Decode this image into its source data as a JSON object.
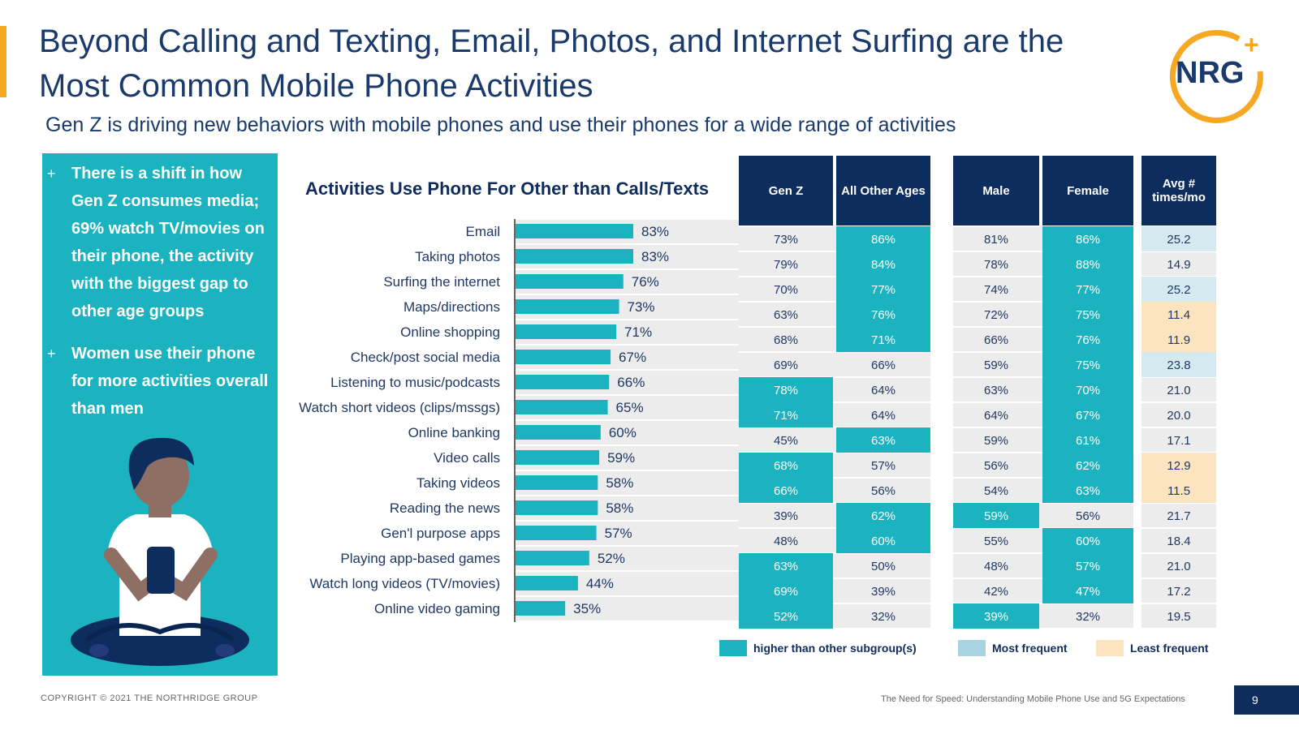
{
  "slide": {
    "title": "Beyond Calling and Texting, Email, Photos, and Internet Surfing are the Most Common Mobile Phone Activities",
    "subtitle": "Gen Z is driving new behaviors with mobile phones and use their phones for a wide range of activities",
    "logo_text": "NRG",
    "logo_plus": "+",
    "copyright": "COPYRIGHT © 2021 THE NORTHRIDGE GROUP",
    "report_title": "The Need for Speed: Understanding Mobile Phone Use and 5G Expectations",
    "page_number": "9"
  },
  "sidebar": {
    "bullets": [
      {
        "marker": "+",
        "text": "There is a shift in how Gen Z consumes media; 69% watch TV/movies on their phone, the activity with the biggest gap to other age groups"
      },
      {
        "marker": "+",
        "text": "Women use their phone for more activities overall than men"
      }
    ]
  },
  "colors": {
    "teal": "#1ab3bf",
    "navy": "#0d2d5e",
    "light_blue": "#d5e9f0",
    "light_orange": "#fde4c0",
    "orange": "#f7a823",
    "row_gray": "#ececec"
  },
  "chart_data": {
    "type": "bar",
    "orientation": "horizontal",
    "title": "Activities Use Phone For Other than Calls/Texts",
    "categories": [
      "Email",
      "Taking photos",
      "Surfing the internet",
      "Maps/directions",
      "Online shopping",
      "Check/post social media",
      "Listening to music/podcasts",
      "Watch short videos (clips/mssgs)",
      "Online banking",
      "Video calls",
      "Taking videos",
      "Reading the news",
      "Gen'l purpose apps",
      "Playing app-based games",
      "Watch long videos (TV/movies)",
      "Online video gaming"
    ],
    "values": [
      83,
      83,
      76,
      73,
      71,
      67,
      66,
      65,
      60,
      59,
      58,
      58,
      57,
      52,
      44,
      35
    ],
    "value_labels": [
      "83%",
      "83%",
      "76%",
      "73%",
      "71%",
      "67%",
      "66%",
      "65%",
      "60%",
      "59%",
      "58%",
      "58%",
      "57%",
      "52%",
      "44%",
      "35%"
    ],
    "xlim": [
      0,
      100
    ],
    "unit": "%"
  },
  "table": {
    "columns": [
      {
        "key": "genz",
        "label": "Gen Z"
      },
      {
        "key": "other",
        "label": "All Other Ages"
      },
      {
        "key": "male",
        "label": "Male"
      },
      {
        "key": "female",
        "label": "Female"
      },
      {
        "key": "avg",
        "label": "Avg # times/mo"
      }
    ],
    "rows": [
      {
        "genz": "73%",
        "other": "86%",
        "male": "81%",
        "female": "86%",
        "avg": "25.2",
        "hl": [
          "other",
          "female"
        ],
        "avg_style": "most"
      },
      {
        "genz": "79%",
        "other": "84%",
        "male": "78%",
        "female": "88%",
        "avg": "14.9",
        "hl": [
          "other",
          "female"
        ],
        "avg_style": ""
      },
      {
        "genz": "70%",
        "other": "77%",
        "male": "74%",
        "female": "77%",
        "avg": "25.2",
        "hl": [
          "other",
          "female"
        ],
        "avg_style": "most"
      },
      {
        "genz": "63%",
        "other": "76%",
        "male": "72%",
        "female": "75%",
        "avg": "11.4",
        "hl": [
          "other",
          "female"
        ],
        "avg_style": "least"
      },
      {
        "genz": "68%",
        "other": "71%",
        "male": "66%",
        "female": "76%",
        "avg": "11.9",
        "hl": [
          "other",
          "female"
        ],
        "avg_style": "least"
      },
      {
        "genz": "69%",
        "other": "66%",
        "male": "59%",
        "female": "75%",
        "avg": "23.8",
        "hl": [
          "female"
        ],
        "avg_style": "most"
      },
      {
        "genz": "78%",
        "other": "64%",
        "male": "63%",
        "female": "70%",
        "avg": "21.0",
        "hl": [
          "genz",
          "female"
        ],
        "avg_style": ""
      },
      {
        "genz": "71%",
        "other": "64%",
        "male": "64%",
        "female": "67%",
        "avg": "20.0",
        "hl": [
          "genz",
          "female"
        ],
        "avg_style": ""
      },
      {
        "genz": "45%",
        "other": "63%",
        "male": "59%",
        "female": "61%",
        "avg": "17.1",
        "hl": [
          "other",
          "female"
        ],
        "avg_style": ""
      },
      {
        "genz": "68%",
        "other": "57%",
        "male": "56%",
        "female": "62%",
        "avg": "12.9",
        "hl": [
          "genz",
          "female"
        ],
        "avg_style": "least"
      },
      {
        "genz": "66%",
        "other": "56%",
        "male": "54%",
        "female": "63%",
        "avg": "11.5",
        "hl": [
          "genz",
          "female"
        ],
        "avg_style": "least"
      },
      {
        "genz": "39%",
        "other": "62%",
        "male": "59%",
        "female": "56%",
        "avg": "21.7",
        "hl": [
          "other",
          "male"
        ],
        "avg_style": ""
      },
      {
        "genz": "48%",
        "other": "60%",
        "male": "55%",
        "female": "60%",
        "avg": "18.4",
        "hl": [
          "other",
          "female"
        ],
        "avg_style": ""
      },
      {
        "genz": "63%",
        "other": "50%",
        "male": "48%",
        "female": "57%",
        "avg": "21.0",
        "hl": [
          "genz",
          "female"
        ],
        "avg_style": ""
      },
      {
        "genz": "69%",
        "other": "39%",
        "male": "42%",
        "female": "47%",
        "avg": "17.2",
        "hl": [
          "genz",
          "female"
        ],
        "avg_style": ""
      },
      {
        "genz": "52%",
        "other": "32%",
        "male": "39%",
        "female": "32%",
        "avg": "19.5",
        "hl": [
          "genz",
          "male"
        ],
        "avg_style": ""
      }
    ]
  },
  "legend": {
    "higher": "higher than other subgroup(s)",
    "most": "Most frequent",
    "least": "Least frequent"
  }
}
